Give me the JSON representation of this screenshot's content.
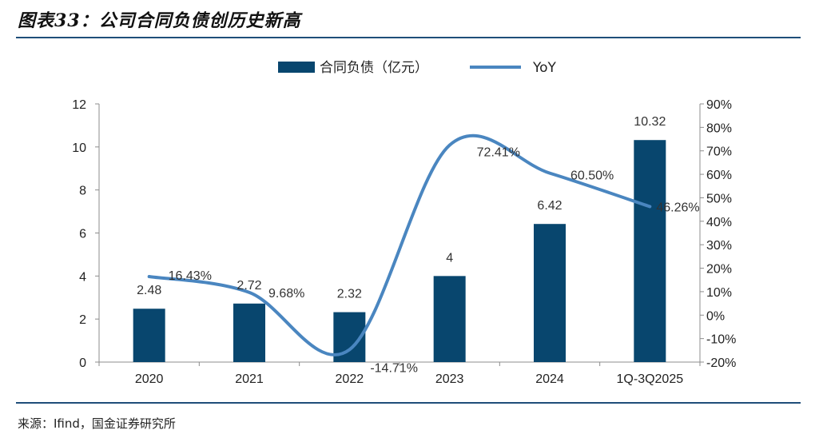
{
  "title": "图表33：公司合同负债创历史新高",
  "source": "来源：Ifind，国金证券研究所",
  "colors": {
    "bar": "#08466e",
    "line": "#4a86c0",
    "rule": "#1f4e79"
  },
  "chart_data": {
    "type": "bar",
    "categories": [
      "2020",
      "2021",
      "2022",
      "2023",
      "2024",
      "1Q-3Q2025"
    ],
    "series": [
      {
        "name": "合同负债（亿元）",
        "kind": "bar",
        "axis": "left",
        "values": [
          2.48,
          2.72,
          2.32,
          4,
          6.42,
          10.32
        ],
        "labels": [
          "2.48",
          "2.72",
          "2.32",
          "4",
          "6.42",
          "10.32"
        ]
      },
      {
        "name": "YoY",
        "kind": "line",
        "axis": "right",
        "values": [
          16.43,
          9.68,
          -14.71,
          72.41,
          60.5,
          46.26
        ],
        "labels": [
          "16.43%",
          "9.68%",
          "-14.71%",
          "72.41%",
          "60.50%",
          "46.26%"
        ]
      }
    ],
    "y_left": {
      "min": 0,
      "max": 12,
      "step": 2,
      "ticks": [
        "0",
        "2",
        "4",
        "6",
        "8",
        "10",
        "12"
      ]
    },
    "y_right": {
      "min": -20,
      "max": 90,
      "step": 10,
      "ticks": [
        "-20%",
        "-10%",
        "0%",
        "10%",
        "20%",
        "30%",
        "40%",
        "50%",
        "60%",
        "70%",
        "80%",
        "90%"
      ]
    },
    "legend": {
      "placement": "top-center"
    },
    "grid": false
  }
}
